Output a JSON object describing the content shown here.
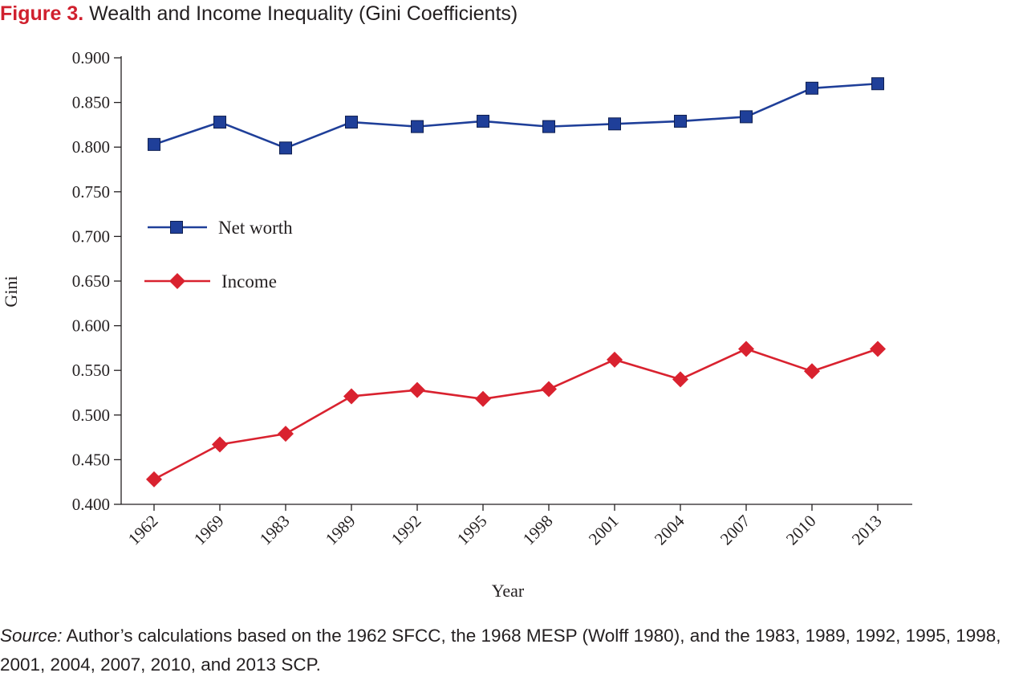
{
  "figure": {
    "label": "Figure 3.",
    "title": "Wealth and Income Inequality (Gini Coefficients)"
  },
  "source": {
    "label": "Source:",
    "text": "Author’s calculations based on the 1962 SFCC, the 1968 MESP (Wolff 1980), and the 1983, 1989, 1992, 1995, 1998, 2001, 2004, 2007, 2010, and 2013 SCP."
  },
  "chart_data": {
    "type": "line",
    "title": "Wealth and Income Inequality (Gini Coefficients)",
    "xlabel": "Year",
    "ylabel": "Gini",
    "categories": [
      "1962",
      "1969",
      "1983",
      "1989",
      "1992",
      "1995",
      "1998",
      "2001",
      "2004",
      "2007",
      "2010",
      "2013"
    ],
    "ylim": [
      0.4,
      0.9
    ],
    "yticks": [
      "0.900",
      "0.850",
      "0.800",
      "0.750",
      "0.700",
      "0.650",
      "0.600",
      "0.550",
      "0.500",
      "0.450",
      "0.400"
    ],
    "grid": false,
    "legend_position": "left",
    "series": [
      {
        "name": "Net worth",
        "marker": "square",
        "color": "#1f3f99",
        "values": [
          0.803,
          0.828,
          0.799,
          0.828,
          0.823,
          0.829,
          0.823,
          0.826,
          0.829,
          0.834,
          0.866,
          0.871
        ]
      },
      {
        "name": "Income",
        "marker": "diamond",
        "color": "#d9222f",
        "values": [
          0.428,
          0.467,
          0.479,
          0.521,
          0.528,
          0.518,
          0.529,
          0.562,
          0.54,
          0.574,
          0.549,
          0.574
        ]
      }
    ]
  }
}
